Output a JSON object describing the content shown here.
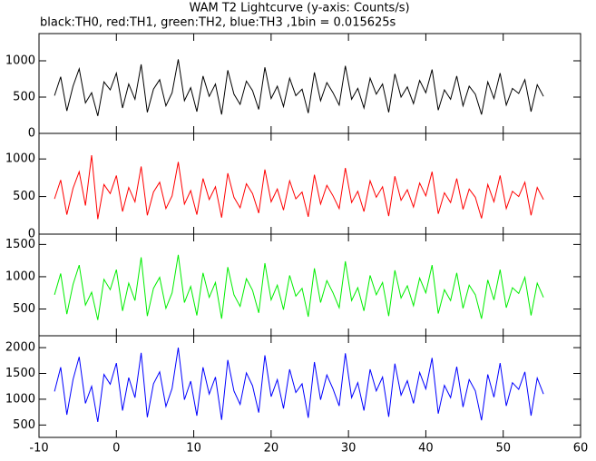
{
  "chart_data": {
    "type": "line",
    "title": "WAM T2 Lightcurve (y-axis: Counts/s)",
    "subtitle": "black:TH0, red:TH1, green:TH2, blue:TH3 ,1bin = 0.015625s",
    "xlim": [
      -10,
      60
    ],
    "xticks": [
      -10,
      0,
      10,
      20,
      30,
      40,
      50,
      60
    ],
    "x": [
      -8,
      -7.2,
      -6.4,
      -5.6,
      -4.8,
      -4,
      -3.2,
      -2.4,
      -1.6,
      -0.8,
      0,
      0.8,
      1.6,
      2.4,
      3.2,
      4,
      4.8,
      5.6,
      6.4,
      7.2,
      8,
      8.8,
      9.6,
      10.4,
      11.2,
      12,
      12.8,
      13.6,
      14.4,
      15.2,
      16,
      16.8,
      17.6,
      18.4,
      19.2,
      20,
      20.8,
      21.6,
      22.4,
      23.2,
      24,
      24.8,
      25.6,
      26.4,
      27.2,
      28,
      28.8,
      29.6,
      30.4,
      31.2,
      32,
      32.8,
      33.6,
      34.4,
      35.2,
      36,
      36.8,
      37.6,
      38.4,
      39.2,
      40,
      40.8,
      41.6,
      42.4,
      43.2,
      44,
      44.8,
      45.6,
      46.4,
      47.2,
      48,
      48.8,
      49.6,
      50.4,
      51.2,
      52,
      52.8,
      53.6,
      54.4,
      55.2
    ],
    "panels": [
      {
        "ylim": [
          0,
          1375
        ],
        "yticks": [
          0,
          500,
          1000
        ],
        "series": [
          {
            "color": "#000000",
            "values": [
              520,
              780,
              310,
              650,
              890,
              420,
              560,
              240,
              710,
              600,
              830,
              350,
              680,
              470,
              950,
              290,
              610,
              740,
              380,
              560,
              1020,
              450,
              630,
              300,
              790,
              510,
              680,
              260,
              870,
              540,
              400,
              720,
              590,
              330,
              910,
              480,
              650,
              370,
              760,
              520,
              610,
              280,
              840,
              450,
              700,
              560,
              390,
              930,
              470,
              620,
              350,
              760,
              540,
              680,
              290,
              820,
              500,
              640,
              410,
              730,
              560,
              880,
              320,
              600,
              470,
              790,
              380,
              650,
              540,
              260,
              710,
              480,
              830,
              390,
              620,
              550,
              740,
              300,
              670,
              510
            ]
          }
        ]
      },
      {
        "ylim": [
          0,
          1340
        ],
        "yticks": [
          0,
          500,
          1000
        ],
        "series": [
          {
            "color": "#ff0000",
            "values": [
              470,
              720,
              260,
              610,
              830,
              380,
              1050,
              200,
              660,
              540,
              780,
              300,
              620,
              430,
              900,
              250,
              560,
              690,
              340,
              510,
              960,
              400,
              580,
              260,
              740,
              460,
              630,
              220,
              810,
              490,
              350,
              670,
              540,
              280,
              860,
              430,
              600,
              320,
              710,
              470,
              560,
              230,
              790,
              400,
              650,
              510,
              340,
              880,
              420,
              570,
              300,
              710,
              490,
              630,
              240,
              770,
              450,
              590,
              360,
              680,
              510,
              830,
              270,
              550,
              420,
              740,
              330,
              600,
              490,
              210,
              660,
              430,
              780,
              340,
              570,
              500,
              690,
              250,
              620,
              460
            ]
          }
        ]
      },
      {
        "ylim": [
          85,
          1660
        ],
        "yticks": [
          500,
          1000,
          1500
        ],
        "series": [
          {
            "color": "#00ee00",
            "values": [
              720,
              1050,
              420,
              880,
              1180,
              560,
              760,
              330,
              960,
              800,
              1110,
              470,
              900,
              630,
              1300,
              390,
              820,
              990,
              510,
              750,
              1340,
              600,
              850,
              400,
              1060,
              680,
              910,
              350,
              1150,
              720,
              540,
              970,
              790,
              440,
              1210,
              640,
              870,
              490,
              1020,
              700,
              820,
              380,
              1130,
              600,
              940,
              750,
              520,
              1240,
              630,
              830,
              470,
              1020,
              720,
              910,
              390,
              1100,
              670,
              860,
              550,
              980,
              750,
              1180,
              430,
              800,
              630,
              1060,
              510,
              870,
              720,
              350,
              950,
              640,
              1110,
              520,
              830,
              740,
              990,
              400,
              900,
              680
            ]
          }
        ]
      },
      {
        "ylim": [
          260,
          2230
        ],
        "yticks": [
          500,
          1000,
          1500,
          2000
        ],
        "series": [
          {
            "color": "#0000ff",
            "values": [
              1150,
              1620,
              700,
              1380,
              1820,
              920,
              1250,
              560,
              1480,
              1290,
              1700,
              780,
              1420,
              1030,
              1900,
              650,
              1300,
              1530,
              860,
              1210,
              2000,
              990,
              1350,
              680,
              1620,
              1100,
              1430,
              600,
              1760,
              1160,
              900,
              1510,
              1260,
              740,
              1850,
              1050,
              1380,
              820,
              1580,
              1130,
              1300,
              640,
              1720,
              990,
              1470,
              1200,
              870,
              1890,
              1030,
              1320,
              780,
              1580,
              1160,
              1430,
              660,
              1690,
              1080,
              1360,
              920,
              1520,
              1200,
              1800,
              720,
              1270,
              1030,
              1630,
              850,
              1380,
              1160,
              590,
              1480,
              1040,
              1700,
              870,
              1320,
              1190,
              1530,
              680,
              1410,
              1100
            ]
          }
        ]
      }
    ]
  }
}
